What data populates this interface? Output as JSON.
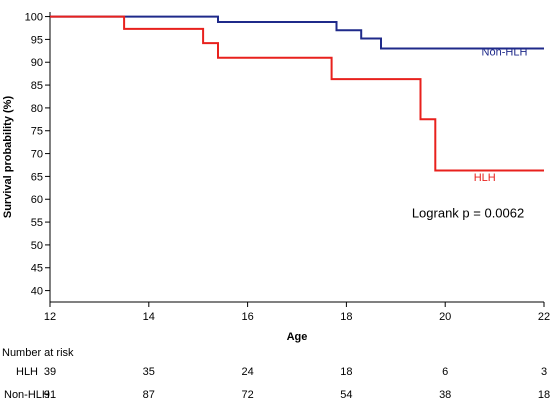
{
  "chart_data": {
    "type": "line",
    "step": true,
    "xlabel": "Age",
    "ylabel": "Survival probability (%)",
    "xlim": [
      12,
      22
    ],
    "ylim": [
      37.5,
      101
    ],
    "xticks": [
      12,
      14,
      16,
      18,
      20,
      22
    ],
    "yticks": [
      40,
      45,
      50,
      55,
      60,
      65,
      70,
      75,
      80,
      85,
      90,
      95,
      100
    ],
    "grid": false,
    "series": [
      {
        "name": "Non-HLH",
        "color": "#1f2a8a",
        "points": [
          [
            12,
            100
          ],
          [
            15.4,
            100
          ],
          [
            15.4,
            98.8
          ],
          [
            17.8,
            98.8
          ],
          [
            17.8,
            97
          ],
          [
            18.3,
            97
          ],
          [
            18.3,
            95.2
          ],
          [
            18.7,
            95.2
          ],
          [
            18.7,
            93
          ],
          [
            22,
            93
          ]
        ]
      },
      {
        "name": "HLH",
        "color": "#e8211d",
        "points": [
          [
            12,
            100
          ],
          [
            13.5,
            100
          ],
          [
            13.5,
            97.3
          ],
          [
            15.1,
            97.3
          ],
          [
            15.1,
            94.2
          ],
          [
            15.4,
            94.2
          ],
          [
            15.4,
            91
          ],
          [
            17.7,
            91
          ],
          [
            17.7,
            86.3
          ],
          [
            19.5,
            86.3
          ],
          [
            19.5,
            77.5
          ],
          [
            19.8,
            77.5
          ],
          [
            19.8,
            66.3
          ],
          [
            22,
            66.3
          ]
        ]
      }
    ],
    "series_labels": [
      {
        "name": "Non-HLH",
        "x": 21.2,
        "y": 91.5
      },
      {
        "name": "HLH",
        "x": 20.8,
        "y": 64
      }
    ],
    "annotation": "Logrank p = 0.0062",
    "annotation_pos": {
      "x": 21.6,
      "y": 56
    },
    "risk_table": {
      "title": "Number at risk",
      "x": [
        12,
        14,
        16,
        18,
        20,
        22
      ],
      "rows": [
        {
          "name": "HLH",
          "values": [
            39,
            35,
            24,
            18,
            6,
            3
          ]
        },
        {
          "name": "Non-HLH",
          "values": [
            91,
            87,
            72,
            54,
            38,
            18
          ]
        }
      ]
    }
  }
}
